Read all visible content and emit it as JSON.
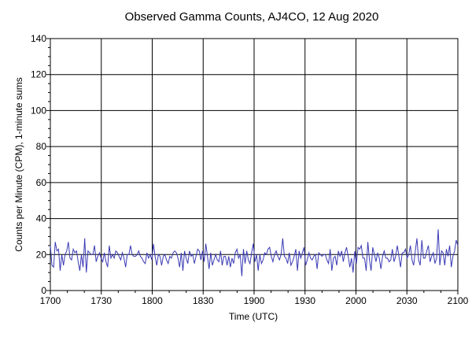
{
  "chart_data": {
    "type": "line",
    "title": "Observed Gamma Counts, AJ4CO, 12 Aug 2020",
    "xlabel": "Time (UTC)",
    "ylabel": "Counts per Minute (CPM), 1-minute sums",
    "x_tick_labels": [
      "1700",
      "1730",
      "1800",
      "1830",
      "1900",
      "1930",
      "2000",
      "2030",
      "2100"
    ],
    "y_ticks": [
      0,
      20,
      40,
      60,
      80,
      100,
      120,
      140
    ],
    "xlim_minutes": [
      0,
      240
    ],
    "ylim": [
      0,
      140
    ],
    "grid": true,
    "legend": "none",
    "colors": {
      "line": "#3a3ab4",
      "grid": "#000000",
      "axis": "#000000"
    },
    "series": [
      {
        "values": [
          25,
          14,
          13,
          27,
          22,
          23,
          11,
          20,
          14,
          20,
          22,
          27,
          18,
          17,
          23,
          21,
          22,
          16,
          11,
          20,
          13,
          29,
          10,
          22,
          21,
          20,
          20,
          25,
          16,
          19,
          21,
          18,
          16,
          21,
          16,
          13,
          25,
          18,
          20,
          18,
          22,
          21,
          19,
          17,
          21,
          18,
          13,
          20,
          20,
          25,
          20,
          19,
          19,
          20,
          22,
          19,
          18,
          16,
          15,
          21,
          18,
          20,
          17,
          26,
          19,
          14,
          20,
          19,
          14,
          19,
          20,
          17,
          15,
          19,
          18,
          21,
          22,
          21,
          18,
          13,
          21,
          11,
          22,
          18,
          15,
          22,
          19,
          20,
          15,
          19,
          23,
          22,
          17,
          22,
          16,
          26,
          19,
          12,
          21,
          14,
          17,
          20,
          17,
          16,
          22,
          14,
          19,
          19,
          14,
          19,
          13,
          18,
          15,
          21,
          23,
          18,
          20,
          8,
          23,
          15,
          22,
          17,
          15,
          21,
          26,
          16,
          20,
          11,
          20,
          15,
          17,
          21,
          20,
          23,
          24,
          19,
          16,
          20,
          22,
          19,
          17,
          20,
          29,
          19,
          18,
          15,
          21,
          14,
          16,
          19,
          23,
          11,
          22,
          18,
          21,
          24,
          14,
          17,
          21,
          18,
          17,
          19,
          20,
          12,
          21,
          20,
          19,
          20,
          20,
          17,
          15,
          23,
          11,
          18,
          19,
          14,
          22,
          19,
          22,
          16,
          21,
          24,
          19,
          13,
          18,
          10,
          22,
          15,
          24,
          23,
          25,
          18,
          18,
          11,
          27,
          17,
          11,
          24,
          20,
          16,
          21,
          18,
          12,
          19,
          22,
          18,
          18,
          16,
          17,
          23,
          16,
          19,
          25,
          19,
          13,
          21,
          21,
          23,
          18,
          20,
          25,
          17,
          14,
          22,
          29,
          17,
          14,
          28,
          18,
          18,
          22,
          25,
          16,
          19,
          21,
          15,
          18,
          34,
          14,
          22,
          21,
          14,
          23,
          19,
          25,
          13,
          19,
          22,
          28,
          25
        ]
      }
    ]
  }
}
